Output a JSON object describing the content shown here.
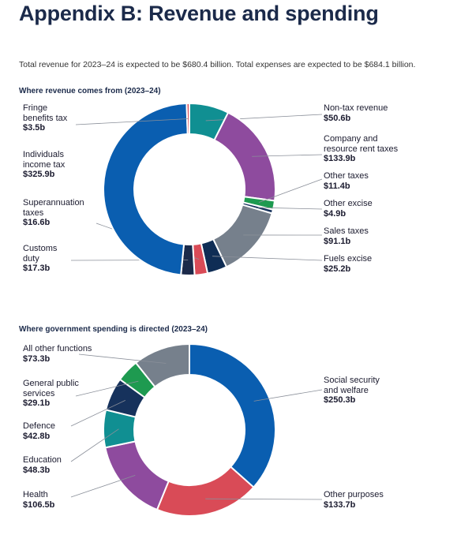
{
  "header": {
    "title": "Appendix B: Revenue and spending",
    "intro": "Total revenue for 2023–24 is expected to be $680.4 billion. Total expenses are expected to be $684.1 billion."
  },
  "chart_data": [
    {
      "type": "pie",
      "variant": "donut",
      "title": "Where revenue comes from (2023–24)",
      "unit": "$b",
      "slices": [
        {
          "label": "Non-tax revenue",
          "display": "$50.6b",
          "value": 50.6,
          "color": "#108f92"
        },
        {
          "label": "Company and resource rent taxes",
          "display": "$133.9b",
          "value": 133.9,
          "color": "#8e4b9e"
        },
        {
          "label": "Other taxes",
          "display": "$11.4b",
          "value": 11.4,
          "color": "#1e9a50"
        },
        {
          "label": "Other excise",
          "display": "$4.9b",
          "value": 4.9,
          "color": "#16325c"
        },
        {
          "label": "Sales taxes",
          "display": "$91.1b",
          "value": 91.1,
          "color": "#76808c"
        },
        {
          "label": "Fuels excise",
          "display": "$25.2b",
          "value": 25.2,
          "color": "#0f2d55"
        },
        {
          "label": "Superannuation taxes",
          "display": "$16.6b",
          "value": 16.6,
          "color": "#d94b57"
        },
        {
          "label": "Customs duty",
          "display": "$17.3b",
          "value": 17.3,
          "color": "#1b2a4a"
        },
        {
          "label": "Individuals income tax",
          "display": "$325.9b",
          "value": 325.9,
          "color": "#0a5eb0"
        },
        {
          "label": "Fringe benefits tax",
          "display": "$3.5b",
          "value": 3.5,
          "color": "#d94b57"
        }
      ]
    },
    {
      "type": "pie",
      "variant": "donut",
      "title": "Where government spending is directed (2023–24)",
      "unit": "$b",
      "slices": [
        {
          "label": "Social security and welfare",
          "display": "$250.3b",
          "value": 250.3,
          "color": "#0a5eb0"
        },
        {
          "label": "Other purposes",
          "display": "$133.7b",
          "value": 133.7,
          "color": "#d94b57"
        },
        {
          "label": "Health",
          "display": "$106.5b",
          "value": 106.5,
          "color": "#8e4b9e"
        },
        {
          "label": "Education",
          "display": "$48.3b",
          "value": 48.3,
          "color": "#108f92"
        },
        {
          "label": "Defence",
          "display": "$42.8b",
          "value": 42.8,
          "color": "#16325c"
        },
        {
          "label": "General public services",
          "display": "$29.1b",
          "value": 29.1,
          "color": "#1e9a50"
        },
        {
          "label": "All other functions",
          "display": "$73.3b",
          "value": 73.3,
          "color": "#76808c"
        }
      ]
    }
  ]
}
